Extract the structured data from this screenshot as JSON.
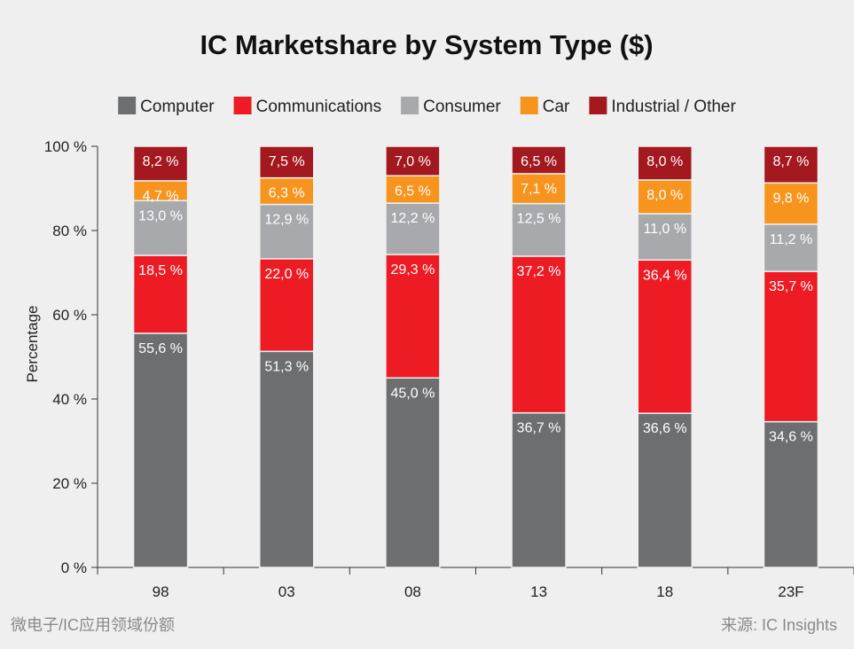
{
  "chart_data": {
    "type": "bar",
    "stacked": true,
    "title": "IC Marketshare by System Type ($)",
    "ylabel": "Percentage",
    "xlabel": "",
    "ylim": [
      0,
      100
    ],
    "yticks": [
      0,
      20,
      40,
      60,
      80,
      100
    ],
    "ytick_labels": [
      "0 %",
      "20 %",
      "40 %",
      "60 %",
      "80 %",
      "100 %"
    ],
    "categories": [
      "98",
      "03",
      "08",
      "13",
      "18",
      "23F"
    ],
    "legend_position": "top",
    "series": [
      {
        "name": "Computer",
        "color": "#6d6e70",
        "values": [
          55.6,
          51.3,
          45.0,
          36.7,
          36.6,
          34.6
        ],
        "labels": [
          "55,6 %",
          "51,3 %",
          "45,0 %",
          "36,7 %",
          "36,6 %",
          "34,6 %"
        ]
      },
      {
        "name": "Communications",
        "color": "#ed1c24",
        "values": [
          18.5,
          22.0,
          29.3,
          37.2,
          36.4,
          35.7
        ],
        "labels": [
          "18,5 %",
          "22,0 %",
          "29,3 %",
          "37,2 %",
          "36,4 %",
          "35,7 %"
        ]
      },
      {
        "name": "Consumer",
        "color": "#a7a9ac",
        "values": [
          13.0,
          12.9,
          12.2,
          12.5,
          11.0,
          11.2
        ],
        "labels": [
          "13,0 %",
          "12,9 %",
          "12,2 %",
          "12,5 %",
          "11,0 %",
          "11,2 %"
        ]
      },
      {
        "name": "Car",
        "color": "#f7941d",
        "values": [
          4.7,
          6.3,
          6.5,
          7.1,
          8.0,
          9.8
        ],
        "labels": [
          "4,7 %",
          "6,3 %",
          "6,5 %",
          "7,1 %",
          "8,0 %",
          "9,8 %"
        ]
      },
      {
        "name": "Industrial / Other",
        "color": "#a3191f",
        "values": [
          8.2,
          7.5,
          7.0,
          6.5,
          8.0,
          8.7
        ],
        "labels": [
          "8,2 %",
          "7,5 %",
          "7,0 %",
          "6,5 %",
          "8,0 %",
          "8,7 %"
        ]
      }
    ]
  },
  "footer": {
    "left": "微电子/IC应用领域份额",
    "right": "来源: IC Insights"
  }
}
